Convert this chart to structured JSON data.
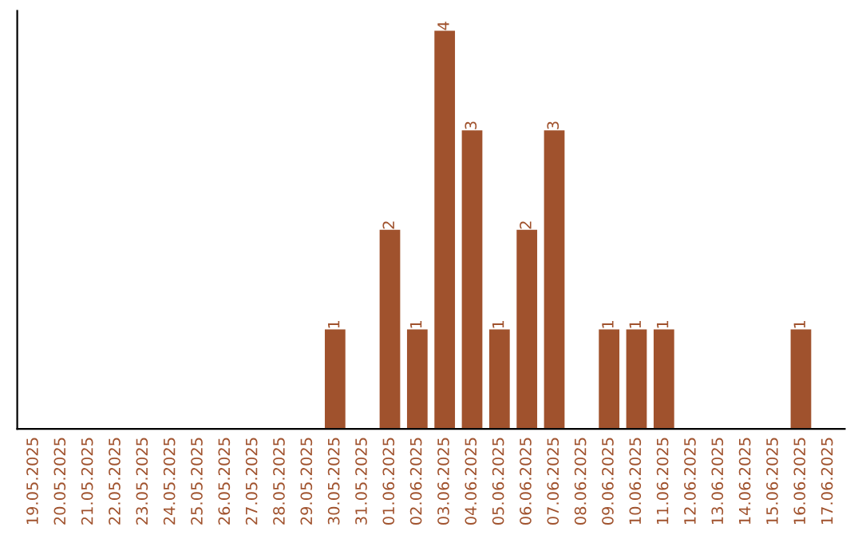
{
  "chart_data": {
    "type": "bar",
    "categories": [
      "19.05.2025",
      "20.05.2025",
      "21.05.2025",
      "22.05.2025",
      "23.05.2025",
      "24.05.2025",
      "25.05.2025",
      "26.05.2025",
      "27.05.2025",
      "28.05.2025",
      "29.05.2025",
      "30.05.2025",
      "31.05.2025",
      "01.06.2025",
      "02.06.2025",
      "03.06.2025",
      "04.06.2025",
      "05.06.2025",
      "06.06.2025",
      "07.06.2025",
      "08.06.2025",
      "09.06.2025",
      "10.06.2025",
      "11.06.2025",
      "12.06.2025",
      "13.06.2025",
      "14.06.2025",
      "15.06.2025",
      "16.06.2025",
      "17.06.2025"
    ],
    "values": [
      0,
      0,
      0,
      0,
      0,
      0,
      0,
      0,
      0,
      0,
      0,
      1,
      0,
      2,
      1,
      4,
      3,
      1,
      2,
      3,
      0,
      1,
      1,
      1,
      0,
      0,
      0,
      0,
      1,
      0
    ],
    "value_labels": [
      null,
      null,
      null,
      null,
      null,
      null,
      null,
      null,
      null,
      null,
      null,
      "1",
      null,
      "2",
      "1",
      "4",
      "3",
      "1",
      "2",
      "3",
      null,
      "1",
      "1",
      "1",
      null,
      null,
      null,
      null,
      "1",
      null
    ],
    "color": "#a0522d",
    "tick_labels": "x",
    "grid": false
  }
}
